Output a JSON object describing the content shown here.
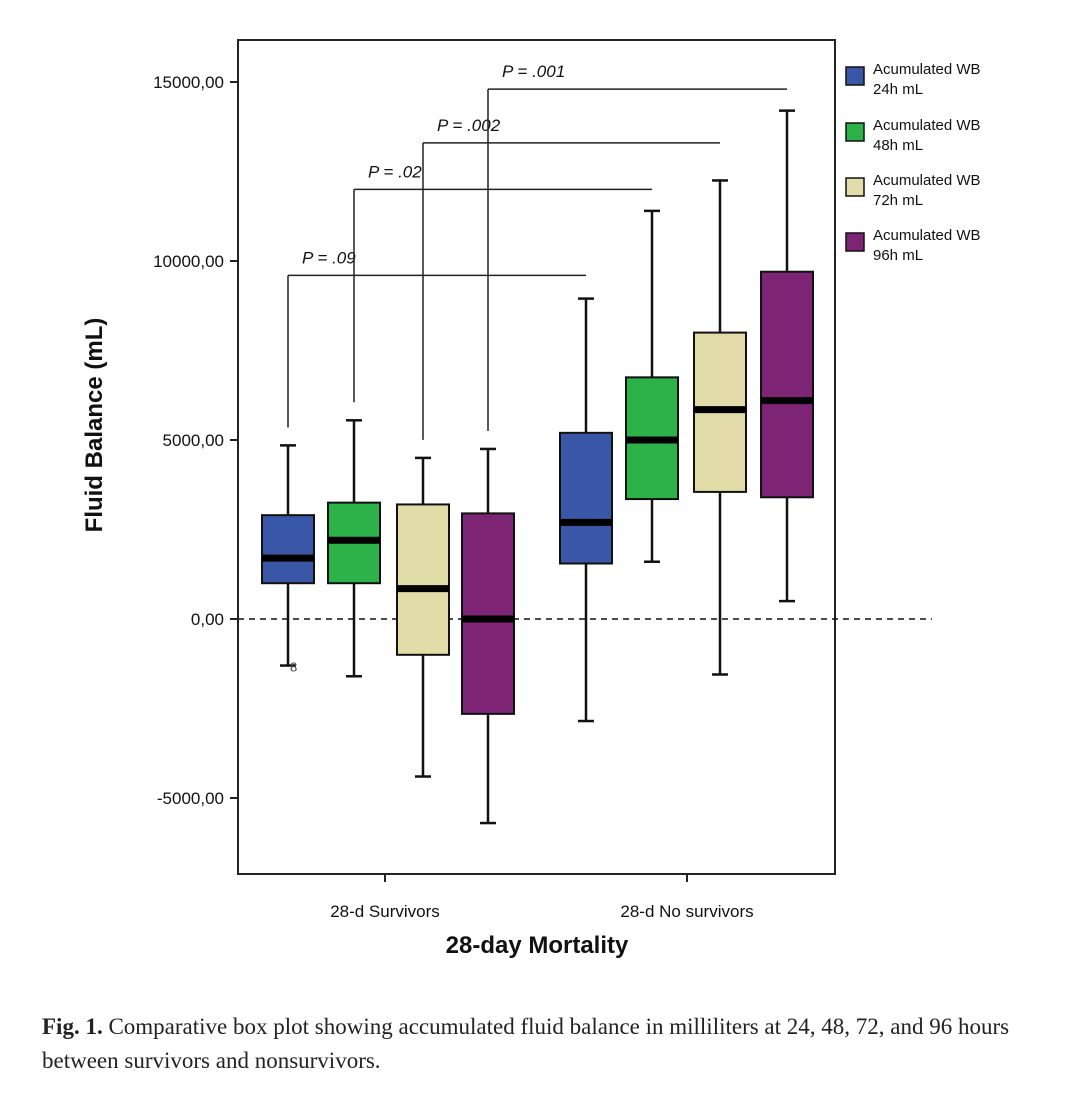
{
  "chart_data": {
    "type": "boxplot",
    "title": "",
    "xlabel": "28-day Mortality",
    "ylabel": "Fluid Balance (mL)",
    "ylim": [
      -7000,
      16000
    ],
    "yticks": [
      -5000,
      0,
      5000,
      10000,
      15000
    ],
    "ytick_labels": [
      "-5000,00",
      "0,00",
      "5000,00",
      "10000,00",
      "15000,00"
    ],
    "reference_line": 0,
    "categories": [
      "28-d Survivors",
      "28-d No survivors"
    ],
    "legend_position": "right",
    "series": [
      {
        "name": "Acumulated WB 24h mL",
        "label_line1": "Acumulated WB",
        "label_line2": "24h mL",
        "color": "#3a56a6",
        "boxes": [
          {
            "min": -1300,
            "q1": 1000,
            "median": 1700,
            "q3": 2900,
            "max": 4850
          },
          {
            "min": -2850,
            "q1": 1550,
            "median": 2700,
            "q3": 5200,
            "max": 8950
          }
        ]
      },
      {
        "name": "Acumulated WB 48h mL",
        "label_line1": "Acumulated WB",
        "label_line2": "48h mL",
        "color": "#2db24a",
        "boxes": [
          {
            "min": -1600,
            "q1": 1000,
            "median": 2200,
            "q3": 3250,
            "max": 5550
          },
          {
            "min": 1600,
            "q1": 3350,
            "median": 5000,
            "q3": 6750,
            "max": 11400
          }
        ]
      },
      {
        "name": "Acumulated WB 72h mL",
        "label_line1": "Acumulated WB",
        "label_line2": "72h mL",
        "color": "#e2dca8",
        "boxes": [
          {
            "min": -4400,
            "q1": -1000,
            "median": 850,
            "q3": 3200,
            "max": 4500
          },
          {
            "min": -1550,
            "q1": 3550,
            "median": 5850,
            "q3": 8000,
            "max": 12250
          }
        ]
      },
      {
        "name": "Acumulated WB 96h mL",
        "label_line1": "Acumulated WB",
        "label_line2": "96h mL",
        "color": "#7d2475",
        "boxes": [
          {
            "min": -5700,
            "q1": -2650,
            "median": 0,
            "q3": 2950,
            "max": 4750
          },
          {
            "min": 500,
            "q1": 3400,
            "median": 6100,
            "q3": 9700,
            "max": 14200
          }
        ]
      }
    ],
    "outliers": [
      {
        "series_index": 0,
        "category_index": 0,
        "value": -1350,
        "label": "8"
      }
    ],
    "annotations": [
      {
        "text": "P = .09",
        "series_index": 0,
        "level": 9600
      },
      {
        "text": "P = .02",
        "series_index": 1,
        "level": 12000
      },
      {
        "text": "P = .002",
        "series_index": 2,
        "level": 13300
      },
      {
        "text": "P = .001",
        "series_index": 3,
        "level": 14800
      }
    ]
  },
  "caption": {
    "label": "Fig. 1.",
    "text": "Comparative box plot showing accumulated fluid balance in milliliters at 24, 48, 72, and 96 hours between survivors and nonsurvivors."
  }
}
